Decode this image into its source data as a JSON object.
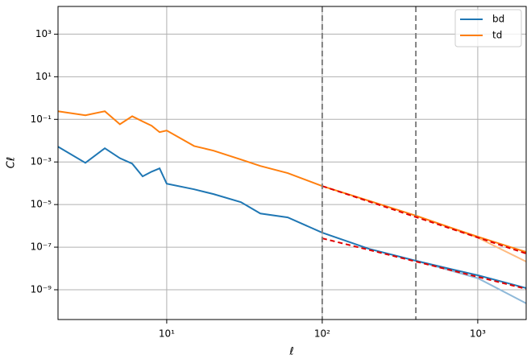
{
  "chart_data": {
    "type": "line",
    "log_x": true,
    "log_y": true,
    "grid": true,
    "legend": "upper right",
    "x_label": "ℓ",
    "y_label": "Cℓ",
    "xlim": [
      2,
      2048
    ],
    "ylim": [
      4e-11,
      20000.0
    ],
    "xticks": [
      {
        "value": 10,
        "label": "10¹"
      },
      {
        "value": 100,
        "label": "10²"
      },
      {
        "value": 1000,
        "label": "10³"
      }
    ],
    "yticks": [
      {
        "value": 1000,
        "label": "10³"
      },
      {
        "value": 10,
        "label": "10¹"
      },
      {
        "value": 0.1,
        "label": "10⁻¹"
      },
      {
        "value": 0.001,
        "label": "10⁻³"
      },
      {
        "value": 1e-05,
        "label": "10⁻⁵"
      },
      {
        "value": 1e-07,
        "label": "10⁻⁷"
      },
      {
        "value": 1e-09,
        "label": "10⁻⁹"
      }
    ],
    "x": [
      2,
      3,
      4,
      5,
      6,
      7,
      8,
      9,
      10,
      15,
      20,
      30,
      40,
      60,
      100,
      200,
      400,
      700,
      1000,
      2048
    ],
    "series": [
      {
        "name": "bd",
        "color": "#1f77b4",
        "values": [
          0.0052,
          0.00091,
          0.0044,
          0.0015,
          0.00083,
          0.00021,
          0.00035,
          0.0005,
          9.5e-05,
          5.2e-05,
          3.1e-05,
          1.3e-05,
          3.8e-06,
          2.5e-06,
          4.8e-07,
          8.3e-08,
          2.3e-08,
          8.7e-09,
          4.8e-09,
          1.2e-09
        ]
      },
      {
        "name": "td",
        "color": "#ff7f0e",
        "values": [
          0.24,
          0.155,
          0.24,
          0.059,
          0.14,
          0.08,
          0.05,
          0.025,
          0.03,
          0.0056,
          0.0034,
          0.0013,
          0.00065,
          0.0003,
          7.4e-05,
          1.5e-05,
          3e-06,
          7.4e-07,
          3.1e-07,
          5.9e-08
        ]
      }
    ],
    "faded_lines": [
      {
        "color": "#8fb9d9",
        "x": [
          400,
          1000,
          2048
        ],
        "values": [
          2.3e-08,
          3.5e-09,
          2.3e-10
        ]
      },
      {
        "color": "#ffbb80",
        "x": [
          400,
          1000,
          2048
        ],
        "values": [
          3e-06,
          2.8e-07,
          2.1e-08
        ]
      }
    ],
    "fit_lines": [
      {
        "color": "#e00000",
        "x": [
          100,
          2048
        ],
        "values": [
          2.6e-07,
          1.1e-09
        ]
      },
      {
        "color": "#e00000",
        "x": [
          100,
          2048
        ],
        "values": [
          7.4e-05,
          5e-08
        ]
      }
    ],
    "vlines": {
      "color": "#808080",
      "x": [
        100,
        400
      ]
    }
  }
}
